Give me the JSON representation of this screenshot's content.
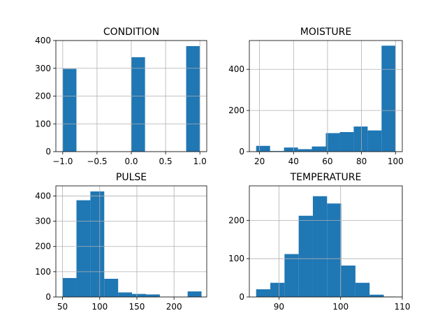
{
  "chart_data": [
    {
      "type": "bar",
      "title": "CONDITION",
      "xlim": [
        -1.1,
        1.1
      ],
      "ylim": [
        0,
        400
      ],
      "xticks": [
        -1.0,
        -0.5,
        0.0,
        0.5,
        1.0
      ],
      "xtick_labels": [
        "−1.0",
        "−0.5",
        "0.0",
        "0.5",
        "1.0"
      ],
      "yticks": [
        0,
        100,
        200,
        300,
        400
      ],
      "ytick_labels": [
        "0",
        "100",
        "200",
        "300",
        "400"
      ],
      "grid": true,
      "bins": [
        {
          "x0": -1.0,
          "x1": -0.8,
          "count": 298
        },
        {
          "x0": 0.0,
          "x1": 0.2,
          "count": 340
        },
        {
          "x0": 0.8,
          "x1": 1.0,
          "count": 380
        }
      ]
    },
    {
      "type": "bar",
      "title": "MOISTURE",
      "xlim": [
        14,
        104
      ],
      "ylim": [
        0,
        540
      ],
      "xticks": [
        20,
        40,
        60,
        80,
        100
      ],
      "xtick_labels": [
        "20",
        "40",
        "60",
        "80",
        "100"
      ],
      "yticks": [
        0,
        200,
        400
      ],
      "ytick_labels": [
        "0",
        "200",
        "400"
      ],
      "grid": true,
      "bins": [
        {
          "x0": 18,
          "x1": 26.2,
          "count": 28
        },
        {
          "x0": 26.2,
          "x1": 34.4,
          "count": 3
        },
        {
          "x0": 34.4,
          "x1": 42.6,
          "count": 20
        },
        {
          "x0": 42.6,
          "x1": 50.8,
          "count": 12
        },
        {
          "x0": 50.8,
          "x1": 59.0,
          "count": 25
        },
        {
          "x0": 59.0,
          "x1": 67.2,
          "count": 90
        },
        {
          "x0": 67.2,
          "x1": 75.4,
          "count": 95
        },
        {
          "x0": 75.4,
          "x1": 83.6,
          "count": 122
        },
        {
          "x0": 83.6,
          "x1": 91.8,
          "count": 103
        },
        {
          "x0": 91.8,
          "x1": 100,
          "count": 515
        }
      ]
    },
    {
      "type": "bar",
      "title": "PULSE",
      "xlim": [
        41,
        244
      ],
      "ylim": [
        0,
        440
      ],
      "xticks": [
        50,
        100,
        150,
        200
      ],
      "xtick_labels": [
        "50",
        "100",
        "150",
        "200"
      ],
      "yticks": [
        0,
        100,
        200,
        300,
        400
      ],
      "ytick_labels": [
        "0",
        "100",
        "200",
        "300",
        "400"
      ],
      "grid": true,
      "bins": [
        {
          "x0": 50,
          "x1": 68.7,
          "count": 75
        },
        {
          "x0": 68.7,
          "x1": 87.4,
          "count": 383
        },
        {
          "x0": 87.4,
          "x1": 106.1,
          "count": 418
        },
        {
          "x0": 106.1,
          "x1": 124.8,
          "count": 72
        },
        {
          "x0": 124.8,
          "x1": 143.5,
          "count": 18
        },
        {
          "x0": 143.5,
          "x1": 162.2,
          "count": 12
        },
        {
          "x0": 162.2,
          "x1": 180.9,
          "count": 10
        },
        {
          "x0": 180.9,
          "x1": 199.6,
          "count": 0
        },
        {
          "x0": 199.6,
          "x1": 218.3,
          "count": 0
        },
        {
          "x0": 218.3,
          "x1": 237,
          "count": 22
        }
      ]
    },
    {
      "type": "bar",
      "title": "TEMPERATURE",
      "xlim": [
        85.2,
        110
      ],
      "ylim": [
        0,
        290
      ],
      "xticks": [
        90,
        100,
        110
      ],
      "xtick_labels": [
        "90",
        "100",
        "110"
      ],
      "yticks": [
        0,
        100,
        200
      ],
      "ytick_labels": [
        "0",
        "100",
        "200"
      ],
      "grid": true,
      "bins": [
        {
          "x0": 86.3,
          "x1": 88.6,
          "count": 20
        },
        {
          "x0": 88.6,
          "x1": 90.9,
          "count": 37
        },
        {
          "x0": 90.9,
          "x1": 93.2,
          "count": 112
        },
        {
          "x0": 93.2,
          "x1": 95.5,
          "count": 212
        },
        {
          "x0": 95.5,
          "x1": 97.8,
          "count": 263
        },
        {
          "x0": 97.8,
          "x1": 100.1,
          "count": 244
        },
        {
          "x0": 100.1,
          "x1": 102.4,
          "count": 82
        },
        {
          "x0": 102.4,
          "x1": 104.7,
          "count": 37
        },
        {
          "x0": 104.7,
          "x1": 107.0,
          "count": 6
        },
        {
          "x0": 107.0,
          "x1": 109.0,
          "count": 1
        }
      ]
    }
  ],
  "colors": {
    "bar": "#1f77b4",
    "grid": "#b0b0b0",
    "axis": "#000000"
  }
}
